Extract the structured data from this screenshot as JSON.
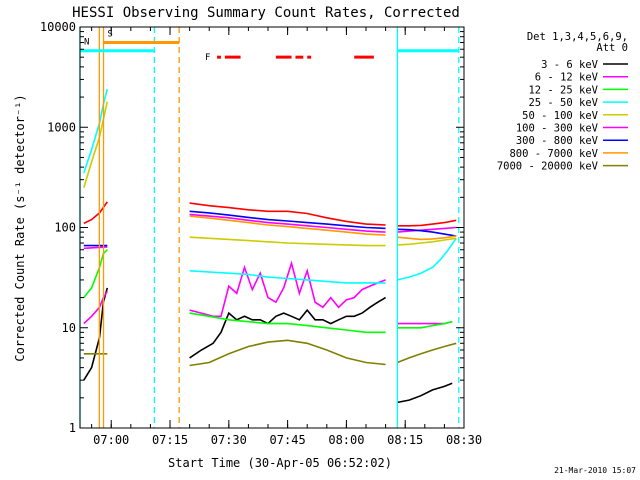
{
  "chart_data": {
    "type": "line",
    "title": "HESSI Observing Summary Count Rates, Corrected",
    "xlabel": "Start Time (30-Apr-05 06:52:02)",
    "ylabel": "Corrected Count Rate (s⁻¹ detector⁻¹)",
    "y_scale": "log",
    "ylim": [
      1,
      10000
    ],
    "xlim": [
      "06:52:02",
      "08:30:00"
    ],
    "y_ticks": [
      "1",
      "10",
      "100",
      "1000",
      "10000"
    ],
    "x_ticks": [
      "07:00",
      "07:15",
      "07:30",
      "07:45",
      "08:00",
      "08:15",
      "08:30"
    ],
    "grid": false,
    "legend_position": "top-right",
    "legend_title": [
      "Det 1,3,4,5,6,9,",
      "Att 0"
    ],
    "stamp": "21-Mar-2010 15:07",
    "series": [
      {
        "name": "3 - 6 keV",
        "color": "#000000",
        "segments": [
          {
            "x": [
              "06:53",
              "06:55",
              "06:57",
              "06:58",
              "06:59"
            ],
            "y": [
              3,
              4,
              8,
              18,
              25
            ]
          },
          {
            "x": [
              "07:20",
              "07:23",
              "07:26",
              "07:28",
              "07:30",
              "07:32",
              "07:34",
              "07:36",
              "07:38",
              "07:40",
              "07:42",
              "07:44",
              "07:46",
              "07:48",
              "07:50",
              "07:52",
              "07:54",
              "07:56",
              "07:58",
              "08:00",
              "08:02",
              "08:04",
              "08:06",
              "08:08",
              "08:10"
            ],
            "y": [
              5,
              6,
              7,
              9,
              14,
              12,
              13,
              12,
              12,
              11,
              13,
              14,
              13,
              12,
              15,
              12,
              12,
              11,
              12,
              13,
              13,
              14,
              16,
              18,
              20
            ]
          },
          {
            "x": [
              "08:13",
              "08:16",
              "08:19",
              "08:22",
              "08:25",
              "08:27"
            ],
            "y": [
              1.8,
              1.9,
              2.1,
              2.4,
              2.6,
              2.8
            ]
          }
        ]
      },
      {
        "name": "6 - 12 keV",
        "color": "#ff00ff",
        "segments": [
          {
            "x": [
              "06:53",
              "06:55",
              "06:57",
              "06:58",
              "06:59"
            ],
            "y": [
              11,
              13,
              16,
              20,
              23
            ]
          },
          {
            "x": [
              "07:20",
              "07:23",
              "07:26",
              "07:28",
              "07:30",
              "07:32",
              "07:34",
              "07:36",
              "07:38",
              "07:40",
              "07:42",
              "07:44",
              "07:46",
              "07:48",
              "07:50",
              "07:52",
              "07:54",
              "07:56",
              "07:58",
              "08:00",
              "08:02",
              "08:04",
              "08:06",
              "08:08",
              "08:10"
            ],
            "y": [
              15,
              14,
              13,
              13,
              26,
              22,
              40,
              24,
              35,
              20,
              18,
              25,
              44,
              22,
              37,
              18,
              16,
              20,
              16,
              19,
              20,
              24,
              26,
              28,
              30
            ]
          },
          {
            "x": [
              "08:13",
              "08:16",
              "08:19",
              "08:22",
              "08:25",
              "08:27"
            ],
            "y": [
              11,
              11,
              11,
              11,
              11,
              11.5
            ]
          }
        ]
      },
      {
        "name": "12 - 25 keV",
        "color": "#00ff00",
        "segments": [
          {
            "x": [
              "06:53",
              "06:55",
              "06:57",
              "06:58",
              "06:59"
            ],
            "y": [
              20,
              25,
              40,
              55,
              60
            ]
          },
          {
            "x": [
              "07:20",
              "07:25",
              "07:30",
              "07:35",
              "07:40",
              "07:45",
              "07:50",
              "07:55",
              "08:00",
              "08:05",
              "08:10"
            ],
            "y": [
              14,
              13,
              12,
              11.5,
              11,
              11,
              10.5,
              10,
              9.5,
              9,
              9
            ]
          },
          {
            "x": [
              "08:13",
              "08:16",
              "08:19",
              "08:22",
              "08:25",
              "08:27"
            ],
            "y": [
              10,
              10,
              10,
              10.5,
              11,
              11.5
            ]
          }
        ]
      },
      {
        "name": "25 - 50 keV",
        "color": "#00ffff",
        "segments": [
          {
            "x": [
              "06:53",
              "06:55",
              "06:57",
              "06:58",
              "06:59"
            ],
            "y": [
              350,
              600,
              1100,
              1700,
              2400
            ]
          },
          {
            "x": [
              "07:20",
              "07:25",
              "07:30",
              "07:35",
              "07:40",
              "07:45",
              "07:50",
              "07:55",
              "08:00",
              "08:05",
              "08:10"
            ],
            "y": [
              37,
              36,
              35,
              34,
              32,
              31,
              30,
              29,
              28,
              28,
              28
            ]
          },
          {
            "x": [
              "08:13",
              "08:16",
              "08:19",
              "08:22",
              "08:24",
              "08:26",
              "08:28"
            ],
            "y": [
              30,
              32,
              35,
              40,
              48,
              60,
              78
            ]
          }
        ]
      },
      {
        "name": "50 - 100 keV",
        "color": "#cccc00",
        "segments": [
          {
            "x": [
              "06:53",
              "06:55",
              "06:57",
              "06:58",
              "06:59"
            ],
            "y": [
              250,
              450,
              800,
              1200,
              1800
            ]
          },
          {
            "x": [
              "07:20",
              "07:25",
              "07:30",
              "07:35",
              "07:40",
              "07:45",
              "07:50",
              "07:55",
              "08:00",
              "08:05",
              "08:10"
            ],
            "y": [
              80,
              78,
              76,
              74,
              72,
              70,
              69,
              68,
              67,
              66,
              66
            ]
          },
          {
            "x": [
              "08:13",
              "08:16",
              "08:19",
              "08:22",
              "08:25",
              "08:28"
            ],
            "y": [
              67,
              68,
              70,
              72,
              75,
              78
            ]
          }
        ]
      },
      {
        "name": "100 - 300 keV",
        "color": "#ff00ff",
        "segments": [
          {
            "x": [
              "06:53",
              "06:59"
            ],
            "y": [
              62,
              64
            ]
          },
          {
            "x": [
              "07:20",
              "07:25",
              "07:30",
              "07:35",
              "07:40",
              "07:45",
              "07:50",
              "07:55",
              "08:00",
              "08:05",
              "08:10"
            ],
            "y": [
              135,
              130,
              125,
              118,
              112,
              108,
              104,
              100,
              96,
              92,
              90
            ]
          },
          {
            "x": [
              "08:13",
              "08:16",
              "08:19",
              "08:22",
              "08:25",
              "08:28"
            ],
            "y": [
              90,
              92,
              94,
              96,
              98,
              100
            ]
          }
        ]
      },
      {
        "name": "300 - 800 keV",
        "color": "#0000ff",
        "segments": [
          {
            "x": [
              "06:53",
              "06:59"
            ],
            "y": [
              66,
              66
            ]
          },
          {
            "x": [
              "07:20",
              "07:25",
              "07:30",
              "07:35",
              "07:40",
              "07:45",
              "07:50",
              "07:55",
              "08:00",
              "08:05",
              "08:10"
            ],
            "y": [
              145,
              140,
              133,
              126,
              120,
              116,
              112,
              108,
              104,
              100,
              98
            ]
          },
          {
            "x": [
              "08:13",
              "08:16",
              "08:19",
              "08:22",
              "08:25",
              "08:28"
            ],
            "y": [
              96,
              95,
              93,
              90,
              86,
              82
            ]
          }
        ]
      },
      {
        "name": "800 - 7000 keV",
        "color": "#ff9900",
        "segments": [
          {
            "x": [
              "07:20",
              "07:25",
              "07:30",
              "07:35",
              "07:40",
              "07:45",
              "07:50",
              "07:55",
              "08:00",
              "08:05",
              "08:10"
            ],
            "y": [
              130,
              124,
              118,
              112,
              106,
              102,
              98,
              94,
              90,
              86,
              84
            ]
          },
          {
            "x": [
              "08:13",
              "08:16",
              "08:19",
              "08:22",
              "08:25",
              "08:28"
            ],
            "y": [
              80,
              78,
              76,
              77,
              79,
              82
            ]
          }
        ]
      },
      {
        "name": "7000 - 20000 keV",
        "color": "#808000",
        "segments": [
          {
            "x": [
              "06:53",
              "06:56",
              "06:59"
            ],
            "y": [
              5.5,
              5.5,
              5.5
            ]
          },
          {
            "x": [
              "07:20",
              "07:25",
              "07:30",
              "07:35",
              "07:40",
              "07:45",
              "07:50",
              "07:55",
              "08:00",
              "08:05",
              "08:10"
            ],
            "y": [
              4.2,
              4.5,
              5.5,
              6.5,
              7.2,
              7.5,
              7,
              6,
              5,
              4.5,
              4.3
            ]
          },
          {
            "x": [
              "08:13",
              "08:16",
              "08:19",
              "08:22",
              "08:25",
              "08:28"
            ],
            "y": [
              4.5,
              5,
              5.5,
              6,
              6.5,
              7
            ]
          }
        ]
      }
    ],
    "extra_lines": [
      {
        "color": "#ff0000",
        "segments": [
          {
            "x": [
              "06:53",
              "06:55",
              "06:57",
              "06:59"
            ],
            "y": [
              110,
              120,
              140,
              180
            ]
          },
          {
            "x": [
              "07:20",
              "07:25",
              "07:30",
              "07:35",
              "07:40",
              "07:45",
              "07:50",
              "07:55",
              "08:00",
              "08:05",
              "08:10"
            ],
            "y": [
              175,
              165,
              158,
              150,
              145,
              145,
              138,
              125,
              115,
              108,
              106
            ]
          },
          {
            "x": [
              "08:13",
              "08:16",
              "08:19",
              "08:22",
              "08:25",
              "08:28"
            ],
            "y": [
              104,
              104,
              105,
              108,
              112,
              118
            ]
          }
        ]
      }
    ],
    "flag_lines": [
      {
        "label": "S",
        "color": "#ff9900",
        "y": 7000,
        "x": [
          "06:58:00",
          "07:17:20"
        ]
      },
      {
        "label": "N",
        "color": "#00ffff",
        "y": 5800,
        "x": [
          "06:52:02",
          "07:11:00"
        ]
      },
      {
        "label": "",
        "color": "#00ffff",
        "y": 5800,
        "x": [
          "08:13:00",
          "08:28:40"
        ]
      }
    ],
    "flag_F": {
      "label": "F",
      "color": "#ff0000",
      "y": 5000,
      "dashes": [
        [
          "07:27",
          "07:28"
        ],
        [
          "07:29",
          "07:33"
        ],
        [
          "07:42",
          "07:46"
        ],
        [
          "07:47",
          "07:49"
        ],
        [
          "07:50",
          "07:51"
        ],
        [
          "08:02",
          "08:07"
        ]
      ]
    },
    "vertical_markers": [
      {
        "x": "06:52:02",
        "color": "#00ffff",
        "style": "solid"
      },
      {
        "x": "06:56:58",
        "color": "#ff9900",
        "style": "solid"
      },
      {
        "x": "06:58:02",
        "color": "#ff9900",
        "style": "solid"
      },
      {
        "x": "07:11:00",
        "color": "#00ffff",
        "style": "dashed"
      },
      {
        "x": "07:17:20",
        "color": "#ff9900",
        "style": "dashed"
      },
      {
        "x": "08:13:00",
        "color": "#00ffff",
        "style": "solid"
      },
      {
        "x": "08:28:40",
        "color": "#00ffff",
        "style": "dashed"
      }
    ]
  }
}
